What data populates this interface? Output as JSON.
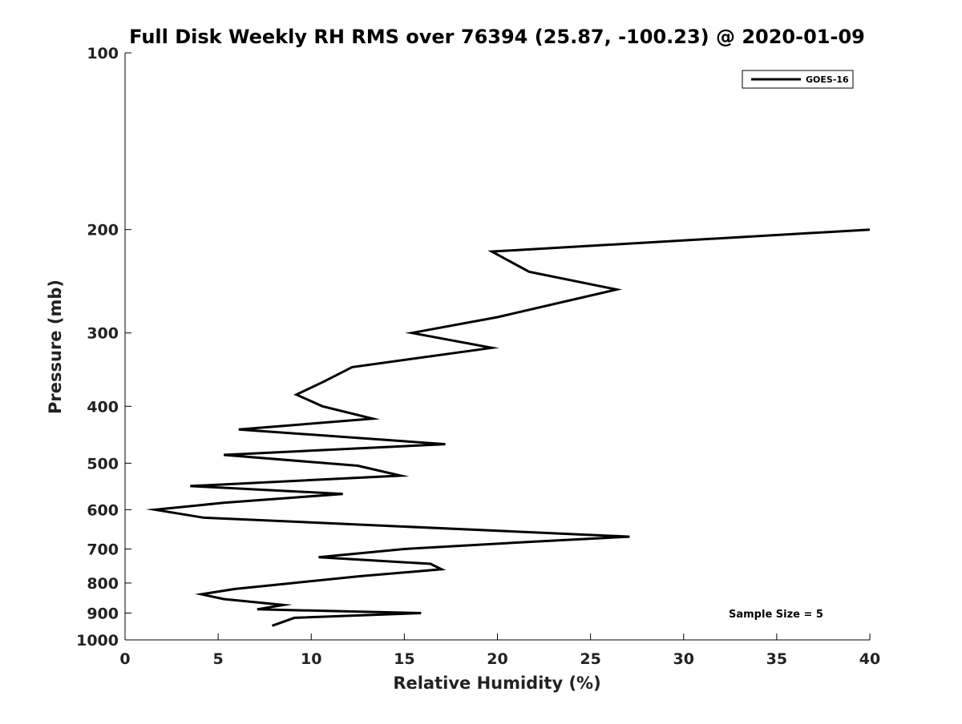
{
  "chart_data": {
    "type": "line",
    "title": "Full Disk Weekly RH RMS over 76394 (25.87, -100.23) @ 2020-01-09",
    "xlabel": "Relative Humidity (%)",
    "ylabel": "Pressure (mb)",
    "xlim": [
      0,
      40
    ],
    "ylim": [
      100,
      1000
    ],
    "yscale": "log",
    "y_reversed": true,
    "x_ticks": [
      "0",
      "5",
      "10",
      "15",
      "20",
      "25",
      "30",
      "35",
      "40"
    ],
    "y_ticks": [
      "100",
      "200",
      "300",
      "400",
      "500",
      "600",
      "700",
      "800",
      "900",
      "1000"
    ],
    "grid": false,
    "legend_position": "top-right",
    "annotation": "Sample Size = 5",
    "series": [
      {
        "name": "GOES-16",
        "color": "#000000",
        "points": [
          {
            "rh": 40.0,
            "p": 200
          },
          {
            "rh": 19.7,
            "p": 218
          },
          {
            "rh": 21.7,
            "p": 236
          },
          {
            "rh": 26.4,
            "p": 253
          },
          {
            "rh": 20.0,
            "p": 282
          },
          {
            "rh": 15.4,
            "p": 300
          },
          {
            "rh": 19.7,
            "p": 318
          },
          {
            "rh": 12.2,
            "p": 343
          },
          {
            "rh": 10.6,
            "p": 364
          },
          {
            "rh": 9.2,
            "p": 382
          },
          {
            "rh": 10.6,
            "p": 400
          },
          {
            "rh": 13.3,
            "p": 420
          },
          {
            "rh": 6.1,
            "p": 438
          },
          {
            "rh": 17.2,
            "p": 464
          },
          {
            "rh": 5.3,
            "p": 484
          },
          {
            "rh": 12.5,
            "p": 505
          },
          {
            "rh": 14.8,
            "p": 525
          },
          {
            "rh": 3.5,
            "p": 547
          },
          {
            "rh": 11.7,
            "p": 564
          },
          {
            "rh": 5.3,
            "p": 584
          },
          {
            "rh": 1.6,
            "p": 600
          },
          {
            "rh": 4.2,
            "p": 619
          },
          {
            "rh": 27.1,
            "p": 667
          },
          {
            "rh": 22.0,
            "p": 680
          },
          {
            "rh": 15.0,
            "p": 700
          },
          {
            "rh": 10.4,
            "p": 723
          },
          {
            "rh": 16.4,
            "p": 742
          },
          {
            "rh": 17.0,
            "p": 758
          },
          {
            "rh": 12.6,
            "p": 779
          },
          {
            "rh": 8.5,
            "p": 803
          },
          {
            "rh": 5.9,
            "p": 819
          },
          {
            "rh": 4.1,
            "p": 836
          },
          {
            "rh": 5.3,
            "p": 852
          },
          {
            "rh": 8.5,
            "p": 872
          },
          {
            "rh": 7.1,
            "p": 887
          },
          {
            "rh": 15.9,
            "p": 900
          },
          {
            "rh": 9.1,
            "p": 917
          },
          {
            "rh": 7.9,
            "p": 946
          }
        ]
      }
    ]
  }
}
